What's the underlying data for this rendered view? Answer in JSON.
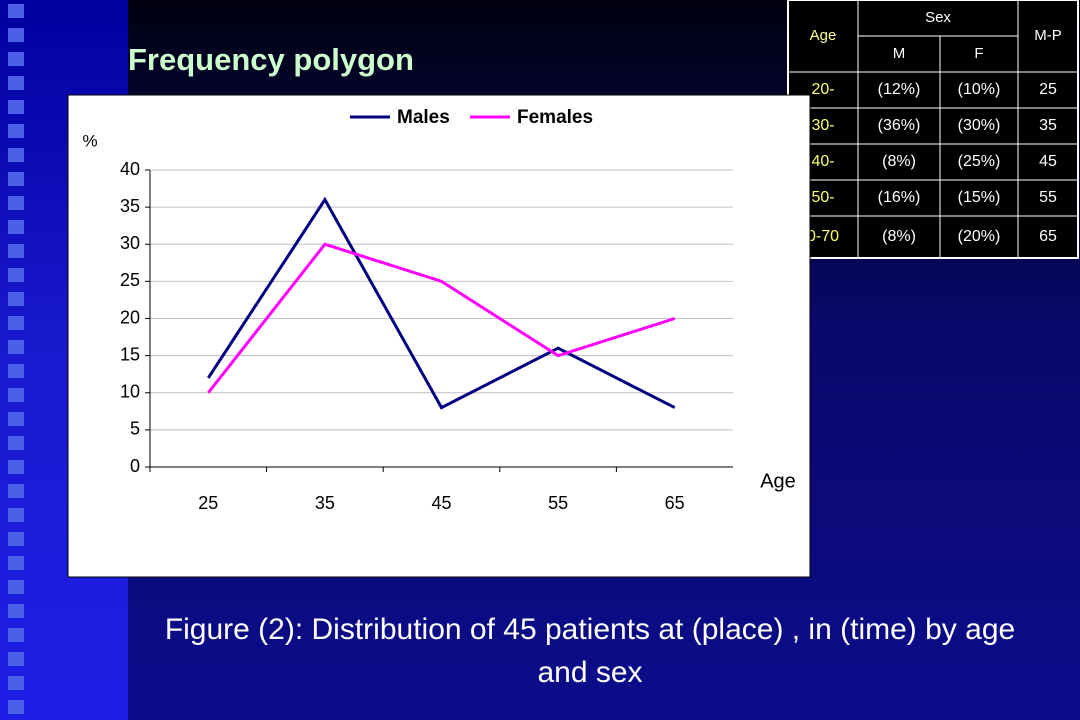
{
  "title": "Frequency polygon",
  "caption": "Figure (2): Distribution of 45 patients at (place) , in (time)  by age and sex",
  "table": {
    "header": [
      "Age",
      "Sex",
      "M-P"
    ],
    "subheader": [
      "M",
      "F"
    ],
    "rows": [
      [
        "20-",
        "(12%)",
        "(10%)",
        "25"
      ],
      [
        "30-",
        "(36%)",
        "(30%)",
        "35"
      ],
      [
        "40-",
        "(8%)",
        "(25%)",
        "45"
      ],
      [
        "50-",
        "(16%)",
        "(15%)",
        "55"
      ],
      [
        "0-70",
        "(8%)",
        "(20%)",
        "65"
      ]
    ]
  },
  "chart_data": {
    "type": "line",
    "y_label": "%",
    "x_label": "Age",
    "categories": [
      "25",
      "35",
      "45",
      "55",
      "65"
    ],
    "series": [
      {
        "name": "Males",
        "color": "#000080",
        "values": [
          12,
          36,
          8,
          16,
          8
        ]
      },
      {
        "name": "Females",
        "color": "#ff00ff",
        "values": [
          10,
          30,
          25,
          15,
          20
        ]
      }
    ],
    "ylim": [
      0,
      40
    ],
    "yticks": [
      0,
      5,
      10,
      15,
      20,
      25,
      30,
      35,
      40
    ],
    "grid": true,
    "legend": "top"
  }
}
